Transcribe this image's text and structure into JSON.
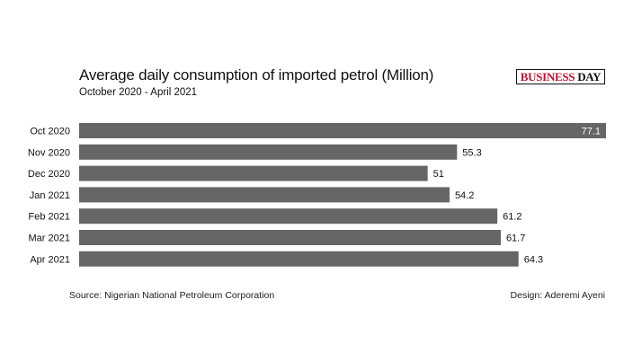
{
  "logo": {
    "part1": "BUSINESS",
    "part2": "DAY"
  },
  "footer": {
    "source": "Source: Nigerian National Petroleum Corporation",
    "design": "Design: Aderemi Ayeni"
  },
  "chart_data": {
    "type": "bar",
    "orientation": "horizontal",
    "title": "Average daily consumption of imported petrol (Million)",
    "subtitle": "October 2020 - April 2021",
    "categories": [
      "Oct 2020",
      "Nov 2020",
      "Dec 2020",
      "Jan 2021",
      "Feb 2021",
      "Mar 2021",
      "Apr 2021"
    ],
    "values": [
      77.1,
      55.3,
      51,
      54.2,
      61.2,
      61.7,
      64.3
    ],
    "xlim": [
      0,
      77.1
    ],
    "bar_color": "#666666",
    "grid": false,
    "legend": "none"
  }
}
